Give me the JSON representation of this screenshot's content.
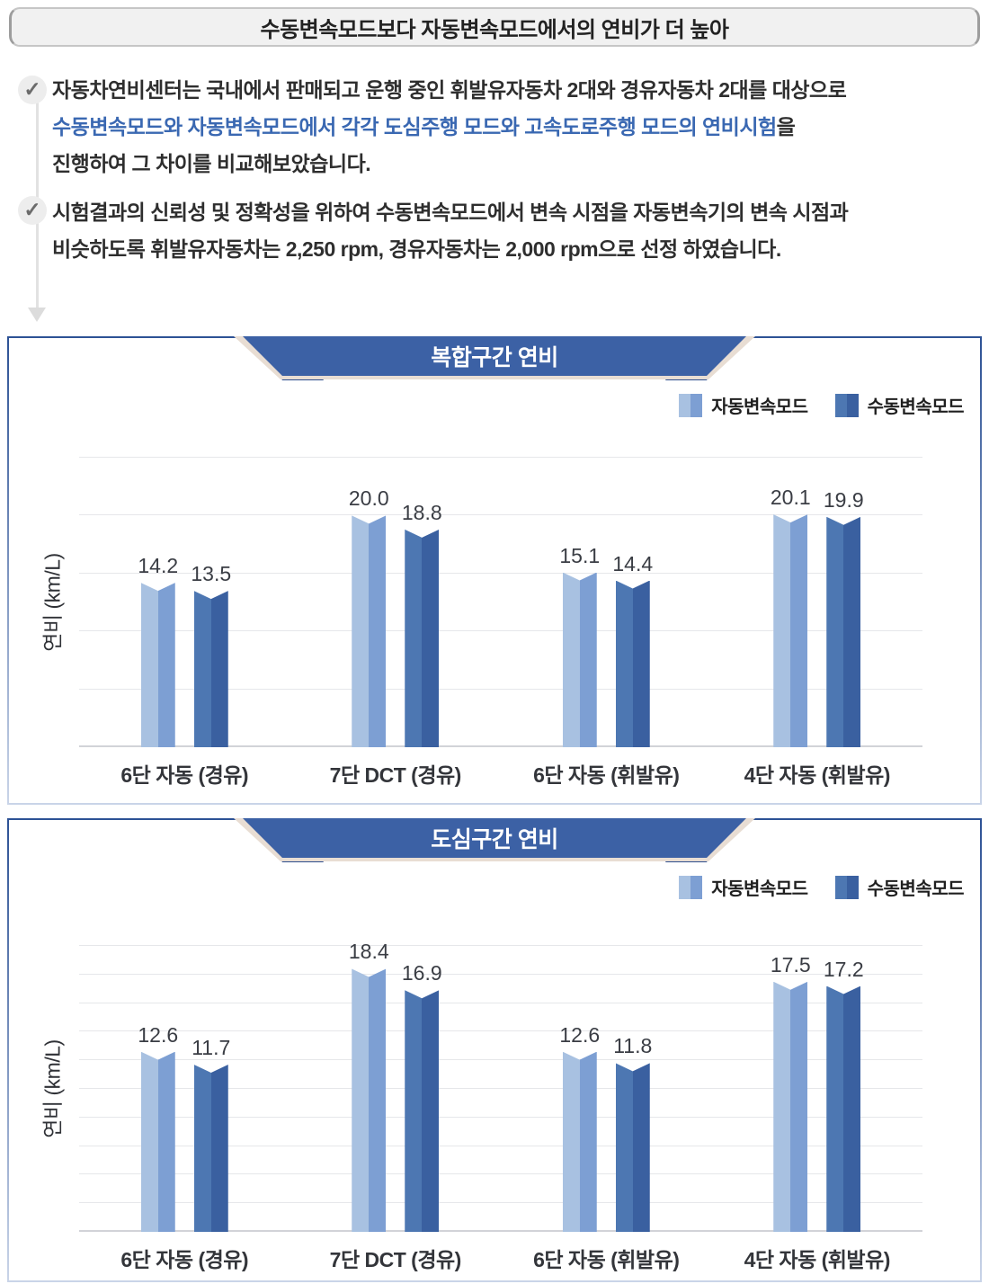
{
  "page_title": "수동변속모드보다 자동변속모드에서의 연비가 더 높아",
  "intro": {
    "bullet1": {
      "line1": "자동차연비센터는 국내에서 판매되고 운행 중인 휘발유자동차 2대와 경유자동차 2대를 대상으로",
      "highlight": "수동변속모드와 자동변속모드에서 각각 도심주행 모드와 고속도로주행 모드의 연비시험",
      "highlight_tail": "을",
      "line3": "진행하여 그 차이를 비교해보았습니다."
    },
    "bullet2": {
      "line1": "시험결과의 신뢰성 및 정확성을 위하여 수동변속모드에서 변속 시점을 자동변속기의 변속 시점과",
      "line2": "비슷하도록 휘발유자동차는 2,250 rpm, 경유자동차는 2,000 rpm으로 선정 하였습니다."
    },
    "check_icon": "✓"
  },
  "legend": {
    "auto": "자동변속모드",
    "manual": "수동변속모드"
  },
  "colors": {
    "accent_text": "#3a68b2",
    "ribbon_blue": "#3c61a5",
    "ribbon_fold": "#e8ddd3",
    "auto_light": "#a8c1e1",
    "auto_dark": "#7d9fd3",
    "manual_light": "#4d77b2",
    "manual_dark": "#3a60a0"
  },
  "chart_data": [
    {
      "type": "bar",
      "title": "복합구간 연비",
      "ylabel": "연비 (km/L)",
      "ylim": [
        0,
        25
      ],
      "grid_step": 5,
      "grid": true,
      "legend_position": "top-right",
      "categories": [
        "6단 자동 (경유)",
        "7단 DCT (경유)",
        "6단 자동 (휘발유)",
        "4단 자동 (휘발유)"
      ],
      "series": [
        {
          "name": "자동변속모드",
          "values": [
            14.2,
            20.0,
            15.1,
            20.1
          ]
        },
        {
          "name": "수동변속모드",
          "values": [
            13.5,
            18.8,
            14.4,
            19.9
          ]
        }
      ]
    },
    {
      "type": "bar",
      "title": "도심구간 연비",
      "ylabel": "연비 (km/L)",
      "ylim": [
        0,
        20
      ],
      "grid_step": 2,
      "grid": true,
      "legend_position": "top-right",
      "categories": [
        "6단 자동 (경유)",
        "7단 DCT (경유)",
        "6단 자동 (휘발유)",
        "4단 자동 (휘발유)"
      ],
      "series": [
        {
          "name": "자동변속모드",
          "values": [
            12.6,
            18.4,
            12.6,
            17.5
          ]
        },
        {
          "name": "수동변속모드",
          "values": [
            11.7,
            16.9,
            11.8,
            17.2
          ]
        }
      ]
    }
  ]
}
